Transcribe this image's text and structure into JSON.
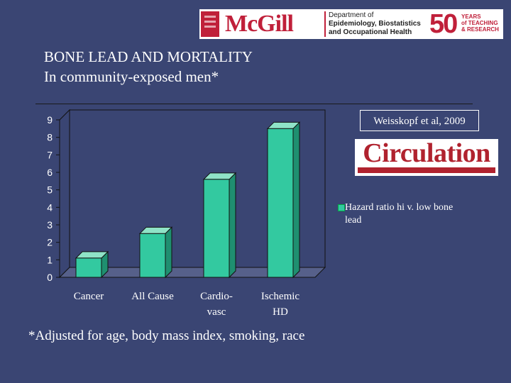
{
  "header": {
    "institution": "McGill",
    "department_lines": [
      "Department of",
      "Epidemiology, Biostatistics",
      "and Occupational Health"
    ],
    "anniversary_number": "50",
    "anniversary_lines": [
      "YEARS",
      "of TEACHING",
      "& RESEARCH"
    ]
  },
  "slide": {
    "title_line1": "BONE LEAD AND MORTALITY",
    "title_line2": "In community-exposed men*",
    "citation": "Weisskopf  et al, 2009",
    "journal_name": "Circulation",
    "footnote": "*Adjusted for age, body mass index, smoking, race"
  },
  "chart_data": {
    "type": "bar",
    "categories": [
      "Cancer",
      "All Cause",
      "Cardio-vasc",
      "Ischemic HD"
    ],
    "category_lines": [
      [
        "Cancer"
      ],
      [
        "All Cause"
      ],
      [
        "Cardio-",
        "vasc"
      ],
      [
        "Ischemic",
        "HD"
      ]
    ],
    "series": [
      {
        "name": "Hazard ratio hi v. low bone lead",
        "values": [
          1.1,
          2.5,
          5.6,
          8.5
        ]
      }
    ],
    "ylim": [
      0,
      9
    ],
    "yticks": [
      "0",
      "1",
      "2",
      "3",
      "4",
      "5",
      "6",
      "7",
      "8",
      "9"
    ],
    "legend_position": "right",
    "grid": false,
    "colors": {
      "bar_front": "#33c9a0",
      "bar_top": "#8fe3c7",
      "bar_side": "#1f8f70",
      "plot_bg": "#3a4573"
    }
  }
}
